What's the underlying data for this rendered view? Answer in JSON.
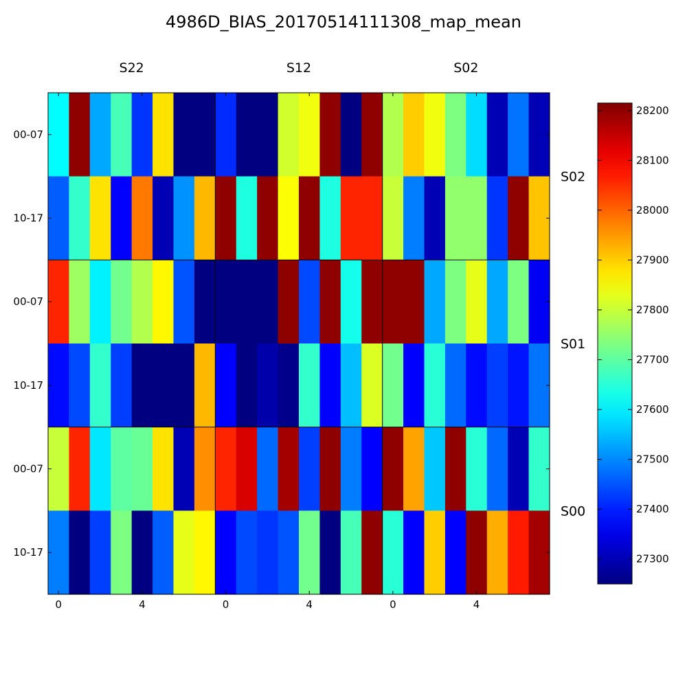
{
  "chart_data": {
    "type": "heatmap",
    "title": "4986D_BIAS_20170514111308_map_mean",
    "column_groups": [
      "S22",
      "S12",
      "S02"
    ],
    "row_groups": [
      "S02",
      "S01",
      "S00"
    ],
    "row_tick_labels": [
      "00-07",
      "10-17"
    ],
    "x_tick_labels": [
      "0",
      "4"
    ],
    "colorbar": {
      "colormap": "jet",
      "vmin": 27250,
      "vmax": 28215,
      "ticks": [
        27300,
        27400,
        27500,
        27600,
        27700,
        27800,
        27900,
        28000,
        28100,
        28200
      ]
    },
    "rows": [
      [
        27610,
        28200,
        27530,
        27680,
        27420,
        27880,
        27250,
        27250,
        27410,
        27250,
        27250,
        27810,
        27840,
        28200,
        27250,
        28200,
        27780,
        27900,
        27840,
        27730,
        27580,
        27300,
        27480,
        27300
      ],
      [
        27460,
        27660,
        27880,
        27370,
        27980,
        27300,
        27510,
        27920,
        28200,
        27640,
        28200,
        27850,
        28200,
        27640,
        28060,
        28060,
        27800,
        27490,
        27300,
        27750,
        27750,
        27420,
        28200,
        27910
      ],
      [
        28060,
        27760,
        27600,
        27720,
        27780,
        27860,
        27450,
        27250,
        27250,
        27250,
        27250,
        28200,
        27440,
        28200,
        27630,
        28200,
        28200,
        28200,
        27530,
        27730,
        27830,
        27530,
        27730,
        27360
      ],
      [
        27380,
        27440,
        27660,
        27430,
        27250,
        27250,
        27250,
        27920,
        27370,
        27250,
        27290,
        27260,
        27660,
        27370,
        27550,
        27820,
        27720,
        27370,
        27650,
        27470,
        27380,
        27430,
        27390,
        27480
      ],
      [
        27800,
        28060,
        27590,
        27700,
        27710,
        27880,
        27300,
        27960,
        28060,
        28130,
        27470,
        28180,
        27430,
        28200,
        27490,
        27370,
        28200,
        27940,
        27560,
        28200,
        27650,
        27470,
        27300,
        27660
      ],
      [
        27490,
        27250,
        27430,
        27730,
        27250,
        27460,
        27830,
        27860,
        27370,
        27440,
        27420,
        27450,
        27720,
        27250,
        27680,
        28200,
        27650,
        27370,
        27900,
        27370,
        28200,
        27930,
        28070,
        28180
      ]
    ]
  }
}
